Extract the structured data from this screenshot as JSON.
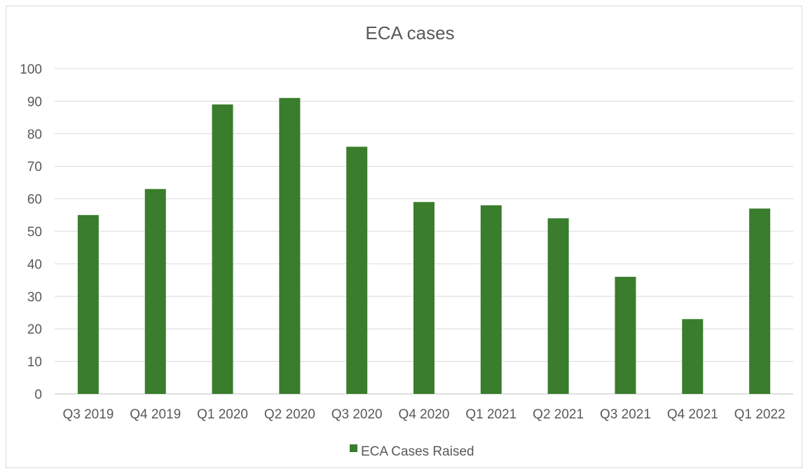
{
  "chart_data": {
    "type": "bar",
    "title": "ECA cases",
    "xlabel": "",
    "ylabel": "",
    "categories": [
      "Q3 2019",
      "Q4 2019",
      "Q1 2020",
      "Q2 2020",
      "Q3 2020",
      "Q4 2020",
      "Q1 2021",
      "Q2 2021",
      "Q3 2021",
      "Q4 2021",
      "Q1 2022"
    ],
    "series": [
      {
        "name": "ECA Cases Raised",
        "values": [
          55,
          63,
          89,
          91,
          76,
          59,
          58,
          54,
          36,
          23,
          57
        ],
        "color": "#3a7d2c"
      }
    ],
    "ylim": [
      0,
      100
    ],
    "yticks": [
      0,
      10,
      20,
      30,
      40,
      50,
      60,
      70,
      80,
      90,
      100
    ],
    "grid": true,
    "legend_position": "bottom"
  }
}
